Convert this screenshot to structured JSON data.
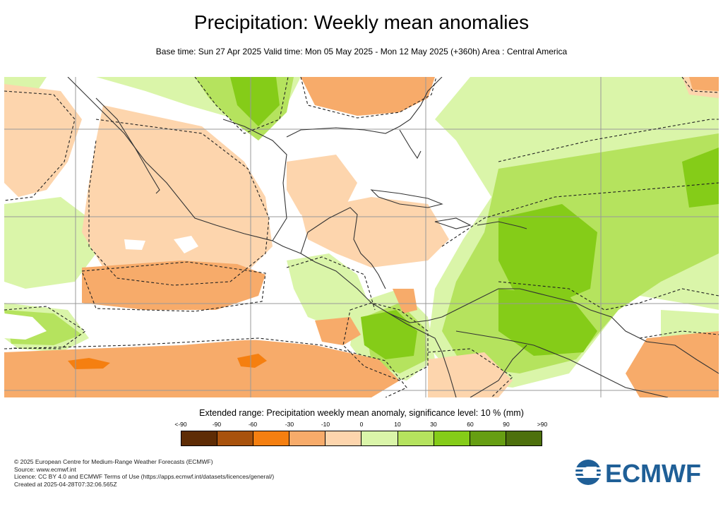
{
  "title": "Precipitation: Weekly mean anomalies",
  "subtitle": "Base time: Sun 27 Apr 2025 Valid time: Mon 05 May 2025 - Mon 12 May 2025 (+360h) Area : Central America",
  "legend": {
    "title": "Extended range: Precipitation weekly mean anomaly, significance level: 10 % (mm)",
    "labels": [
      "<-90",
      "-90",
      "-60",
      "-30",
      "-10",
      "0",
      "10",
      "30",
      "60",
      "90",
      ">90"
    ],
    "colors": [
      "#5e2c05",
      "#a8520d",
      "#f57f10",
      "#f7ab6a",
      "#fdd5ad",
      "#daf5a9",
      "#b5e35e",
      "#85cc18",
      "#669e12",
      "#4d700d"
    ]
  },
  "map": {
    "region": "Central America",
    "colors": {
      "sea_positive_light": "#daf5a9",
      "positive_mid": "#b5e35e",
      "positive_strong": "#85cc18",
      "negative_light": "#fdd5ad",
      "negative_mid": "#f7ab6a",
      "negative_strong": "#f57f10"
    }
  },
  "footer": {
    "line1": "© 2025 European Centre for Medium-Range Weather Forecasts (ECMWF)",
    "line2": "Source: www.ecmwf.int",
    "line3": "Licence: CC BY 4.0 and ECMWF Terms of Use (https://apps.ecmwf.int/datasets/licences/general/)",
    "line4": "Created at 2025-04-28T07:32:06.565Z"
  },
  "logo": {
    "text": "ECMWF",
    "color": "#1f5f97"
  }
}
